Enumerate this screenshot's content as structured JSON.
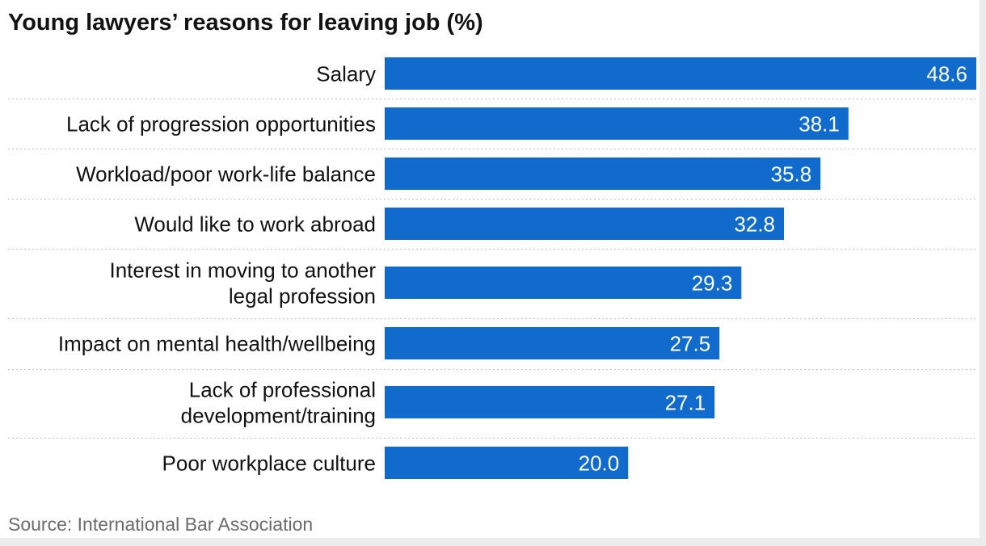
{
  "chart_data": {
    "type": "bar",
    "orientation": "horizontal",
    "title": "Young lawyers’ reasons for leaving job (%)",
    "categories": [
      "Salary",
      "Lack of progression opportunities",
      "Workload/poor work-life balance",
      "Would like to work abroad",
      "Interest in moving to another legal profession",
      "Impact on mental health/wellbeing",
      "Lack of professional development/training",
      "Poor workplace culture"
    ],
    "values": [
      48.6,
      38.1,
      35.8,
      32.8,
      29.3,
      27.5,
      27.1,
      20.0
    ],
    "data_labels": [
      "48.6",
      "38.1",
      "35.8",
      "32.8",
      "29.3",
      "27.5",
      "27.1",
      "20.0"
    ],
    "xlim": [
      0,
      48.6
    ],
    "source": "Source: International Bar Association",
    "colors": {
      "bar": "#116bcc",
      "divider": "#c8c8c8",
      "label": "#121212",
      "value_label": "#ffffff"
    }
  }
}
